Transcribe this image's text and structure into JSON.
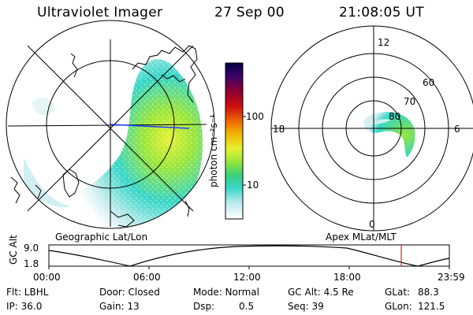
{
  "header": {
    "instrument": "Ultraviolet Imager",
    "date": "27 Sep 00",
    "time": "21:08:05 UT"
  },
  "colors": {
    "background": "#ffffff",
    "foreground": "#000000",
    "aurora_low": "#cfeef0",
    "aurora_mid": "#38d6c8",
    "aurora_high": "#9be63a",
    "aurora_peak": "#e6f230",
    "meridian_line": "#1a3cff",
    "time_marker": "#e02020"
  },
  "colorbar": {
    "unit_label": "photon cm⁻²s⁻¹",
    "ticks": [
      "100",
      "10"
    ],
    "stops": [
      "#000040",
      "#3a006a",
      "#8a0030",
      "#d01010",
      "#f07000",
      "#f0b000",
      "#e6f230",
      "#9be63a",
      "#3ad07a",
      "#38d6c8",
      "#bdebf0",
      "#ffffff"
    ]
  },
  "left_map": {
    "caption": "Geographic Lat/Lon"
  },
  "right_map": {
    "caption": "Apex MLat/MLT",
    "mlt_labels": {
      "top": "12",
      "left": "18",
      "right": "6",
      "bottom": "0"
    },
    "ring_labels": [
      "60",
      "70",
      "80"
    ]
  },
  "altitude_plot": {
    "ylabel": "GC Alt",
    "ymax_label": "9.0",
    "ymin_label": "1.8",
    "x_ticks": [
      "00:00",
      "06:00",
      "12:00",
      "18:00",
      "23:59"
    ],
    "marker_time_fraction": 0.88
  },
  "info": {
    "flt": "Flt: LBHL",
    "ip": "IP: 36.0",
    "door": "Door: Closed",
    "gain": "Gain: 13",
    "mode": "Mode: Normal",
    "dsp_label": "Dsp:",
    "dsp_value": "0.5",
    "gc_alt": "GC Alt: 4.5 Re",
    "seq": "Seq: 39",
    "glat_label": "GLat:",
    "glat_value": "88.3",
    "glon_label": "GLon:",
    "glon_value": "121.5"
  }
}
